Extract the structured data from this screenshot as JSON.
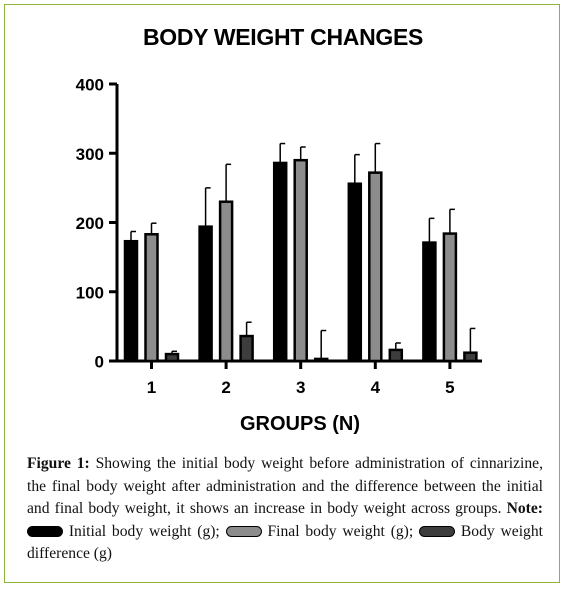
{
  "chart_data": {
    "type": "bar",
    "title": "BODY WEIGHT CHANGES",
    "xlabel": "GROUPS (N)",
    "ylabel": "",
    "ylim": [
      0,
      400
    ],
    "yticks": [
      "0",
      "100",
      "200",
      "300",
      "400"
    ],
    "categories": [
      "1",
      "2",
      "3",
      "4",
      "5"
    ],
    "grid": false,
    "series": [
      {
        "name": "Initial body weight (g)",
        "color": "#000000",
        "values": [
          173,
          194,
          286,
          256,
          171
        ],
        "errors": [
          14,
          56,
          28,
          42,
          35
        ]
      },
      {
        "name": "Final body weight (g)",
        "color": "#8c8c8c",
        "values": [
          183,
          230,
          290,
          272,
          184
        ],
        "errors": [
          16,
          54,
          19,
          42,
          35
        ]
      },
      {
        "name": "Body weight difference (g)",
        "color": "#3d3d3d",
        "values": [
          10,
          36,
          3,
          16,
          12
        ],
        "errors": [
          4,
          20,
          41,
          10,
          35
        ]
      }
    ]
  },
  "caption": {
    "label": "Figure 1:",
    "text": " Showing the initial body weight before administration of cinnarizine, the final body weight after administration and the difference between the initial and final body weight, it shows an increase in body weight across groups. ",
    "note_label": "Note:",
    "legend": [
      {
        "text": " Initial body weight (g); ",
        "color": "#000000"
      },
      {
        "text": " Final body weight (g); ",
        "color": "#8c8c8c"
      },
      {
        "text": " Body weight difference (g)",
        "color": "#3d3d3d"
      }
    ]
  }
}
